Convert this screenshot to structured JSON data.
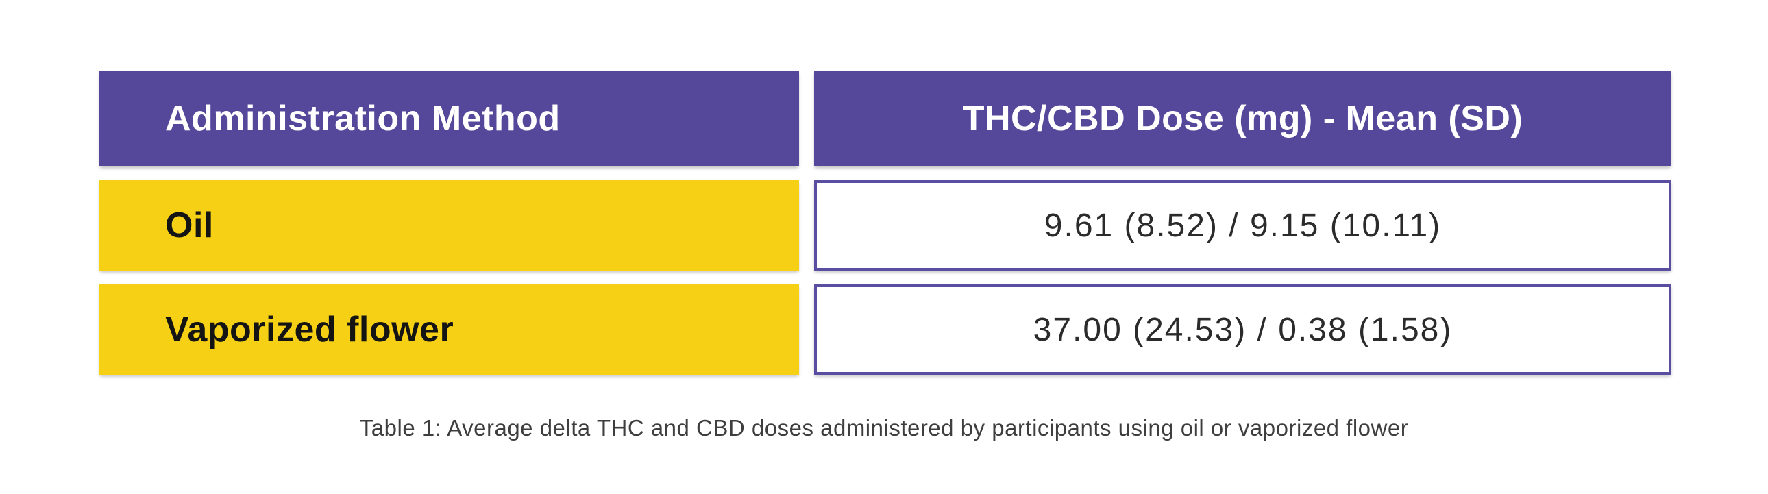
{
  "table": {
    "columns": [
      {
        "header": "Administration Method"
      },
      {
        "header": "THC/CBD Dose (mg) - Mean (SD)"
      }
    ],
    "rows": [
      {
        "method": "Oil",
        "dose": "9.61 (8.52) / 9.15 (10.11)"
      },
      {
        "method": "Vaporized flower",
        "dose": "37.00 (24.53) / 0.38 (1.58)"
      }
    ],
    "colors": {
      "header_bg": "#55489b",
      "header_text": "#ffffff",
      "method_bg": "#f5d014",
      "method_text": "#141414",
      "dose_bg": "#ffffff",
      "dose_border": "#5a4ea0",
      "dose_text": "#2b2b2b",
      "caption_text": "#3e3e3e",
      "page_bg": "#ffffff"
    }
  },
  "caption": {
    "text": "Table 1: Average delta THC and CBD doses administered by participants using oil or vaporized flower"
  },
  "chart_data": {
    "type": "table",
    "title": "Table 1",
    "columns": [
      "Administration Method",
      "THC/CBD Dose (mg) - Mean (SD)"
    ],
    "rows": [
      [
        "Oil",
        "9.61 (8.52) / 9.15 (10.11)"
      ],
      [
        "Vaporized flower",
        "37.00 (24.53) / 0.38 (1.58)"
      ]
    ],
    "values": {
      "oil": {
        "thc_mean": 9.61,
        "thc_sd": 8.52,
        "cbd_mean": 9.15,
        "cbd_sd": 10.11
      },
      "vaporized_flower": {
        "thc_mean": 37.0,
        "thc_sd": 24.53,
        "cbd_mean": 0.38,
        "cbd_sd": 1.58
      }
    },
    "caption": "Table 1: Average delta THC and CBD doses administered by participants using oil or vaporized flower"
  }
}
